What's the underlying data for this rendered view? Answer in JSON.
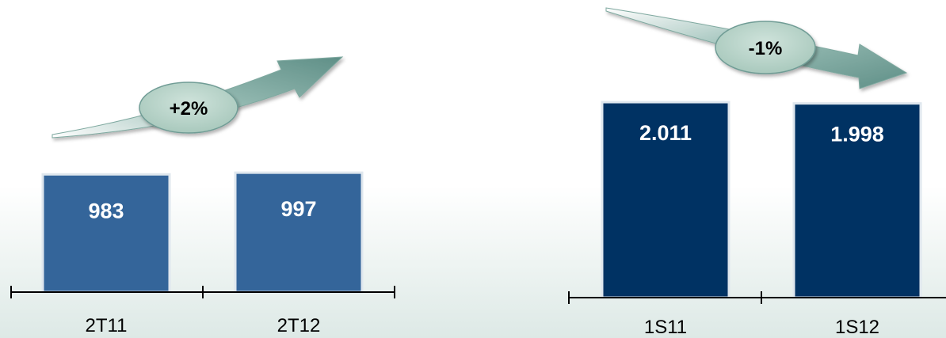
{
  "chart_data": [
    {
      "type": "bar",
      "categories": [
        "2T11",
        "2T12"
      ],
      "values": [
        983,
        997
      ],
      "value_labels": [
        "983",
        "997"
      ],
      "change_label": "+2%",
      "ylim": [
        0,
        2200
      ],
      "grid": false,
      "colors": {
        "bar": "#34659a",
        "bar_edge": "#dfe7ee",
        "arrow": "#6f9c95",
        "ellipse": "#b7d2c8"
      }
    },
    {
      "type": "bar",
      "categories": [
        "1S11",
        "1S12"
      ],
      "values": [
        2011,
        1998
      ],
      "value_labels": [
        "2.011",
        "1.998"
      ],
      "change_label": "-1%",
      "ylim": [
        0,
        2200
      ],
      "grid": false,
      "colors": {
        "bar": "#003263",
        "bar_edge": "#dfe7ee",
        "arrow": "#6f9c95",
        "ellipse": "#b7d2c8"
      }
    }
  ]
}
